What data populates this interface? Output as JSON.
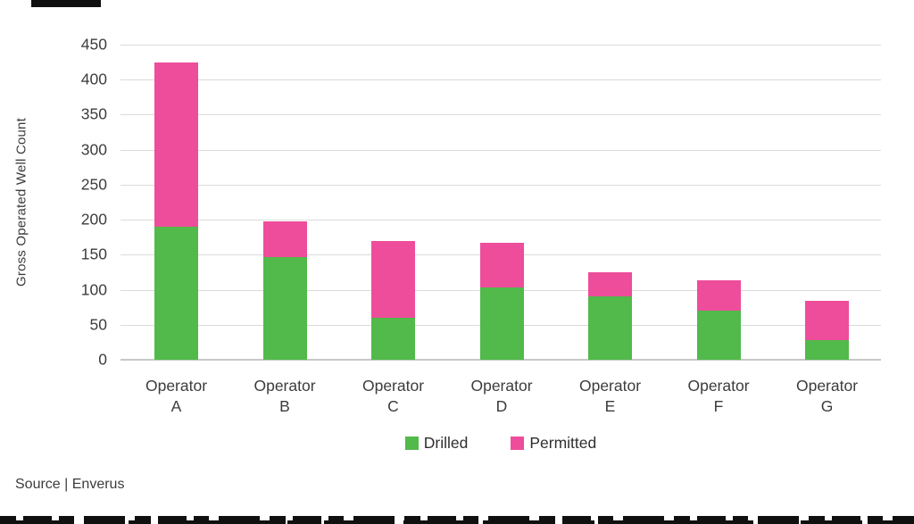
{
  "chart_data": {
    "type": "bar",
    "stacked": true,
    "categories": [
      "Operator A",
      "Operator B",
      "Operator C",
      "Operator D",
      "Operator E",
      "Operator F",
      "Operator G"
    ],
    "series": [
      {
        "name": "Drilled",
        "color": "#52B94B",
        "values": [
          190,
          147,
          60,
          103,
          90,
          70,
          28
        ]
      },
      {
        "name": "Permitted",
        "color": "#EE4D9B",
        "values": [
          235,
          50,
          109,
          64,
          35,
          43,
          56
        ]
      }
    ],
    "totals": [
      425,
      197,
      169,
      167,
      125,
      113,
      84
    ],
    "title": "",
    "xlabel": "",
    "ylabel": "Gross Operated Well Count",
    "ylim": [
      0,
      450
    ],
    "ytick_step": 50,
    "yticks": [
      0,
      50,
      100,
      150,
      200,
      250,
      300,
      350,
      400,
      450
    ],
    "grid": true,
    "legend_position": "bottom",
    "colors": {
      "gridline": "#dbdbdb",
      "zero_line": "#c7c7c7",
      "text": "#3c3c3c",
      "background": "#ffffff"
    }
  },
  "source_note": "Source | Enverus"
}
